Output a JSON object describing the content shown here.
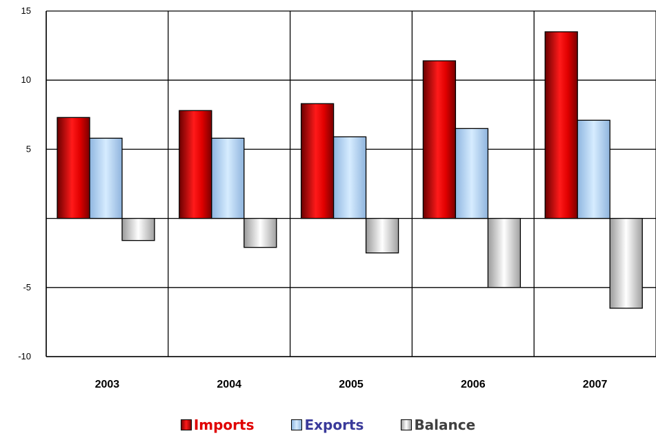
{
  "chart_data": {
    "type": "bar",
    "categories": [
      "2003",
      "2004",
      "2005",
      "2006",
      "2007"
    ],
    "series": [
      {
        "name": "Imports",
        "values": [
          7.3,
          7.8,
          8.3,
          11.4,
          13.5
        ],
        "color": "#e00000",
        "label_color": "#e00000"
      },
      {
        "name": "Exports",
        "values": [
          5.8,
          5.8,
          5.9,
          6.5,
          7.1
        ],
        "color": "#b8dcff",
        "label_color": "#3a3a9a"
      },
      {
        "name": "Balance",
        "values": [
          -1.6,
          -2.1,
          -2.5,
          -5.0,
          -6.5
        ],
        "color": "#eeeeee",
        "label_color": "#404040"
      }
    ],
    "ylim": [
      -10,
      15
    ],
    "yticks": [
      "-10",
      "-5",
      "",
      "5",
      "10",
      "15"
    ],
    "ytick_values": [
      -10,
      -5,
      0,
      5,
      10,
      15
    ],
    "grid": true,
    "legend_position": "bottom"
  }
}
